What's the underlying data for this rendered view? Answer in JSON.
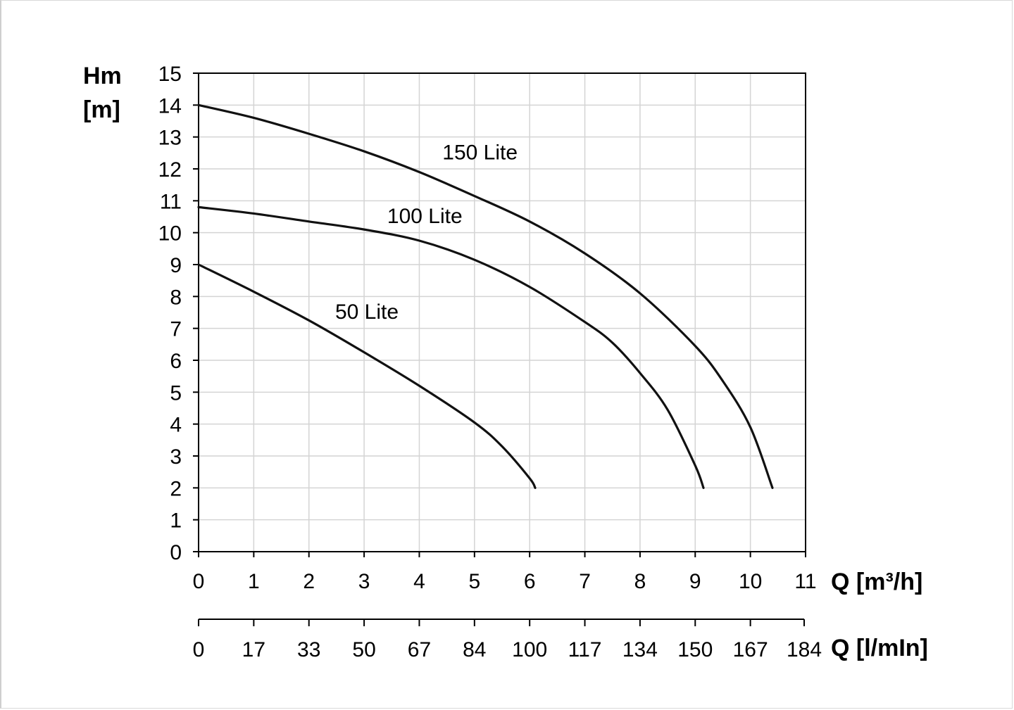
{
  "chart_data": {
    "type": "line",
    "ylabel_line1": "Hm",
    "ylabel_line2": "[m]",
    "xlabel": "Q [m³/h]",
    "x2label": "Q [l/mIn]",
    "xlim": [
      0,
      11
    ],
    "ylim": [
      0,
      15
    ],
    "grid": true,
    "x_ticks": [
      "0",
      "1",
      "2",
      "3",
      "4",
      "5",
      "6",
      "7",
      "8",
      "9",
      "10",
      "11"
    ],
    "y_ticks": [
      "0",
      "1",
      "2",
      "3",
      "4",
      "5",
      "6",
      "7",
      "8",
      "9",
      "10",
      "11",
      "12",
      "13",
      "14",
      "15"
    ],
    "x2_ticks": [
      "0",
      "17",
      "33",
      "50",
      "67",
      "84",
      "100",
      "117",
      "134",
      "150",
      "167",
      "184"
    ],
    "series": [
      {
        "name": "150 Lite",
        "label_at": [
          5.1,
          12.3
        ],
        "points": [
          [
            0,
            14.0
          ],
          [
            1,
            13.6
          ],
          [
            2,
            13.1
          ],
          [
            3,
            12.55
          ],
          [
            4,
            11.9
          ],
          [
            5,
            11.15
          ],
          [
            6,
            10.35
          ],
          [
            7,
            9.35
          ],
          [
            8,
            8.1
          ],
          [
            9,
            6.45
          ],
          [
            9.5,
            5.35
          ],
          [
            10,
            3.9
          ],
          [
            10.4,
            2.0
          ]
        ]
      },
      {
        "name": "100 Lite",
        "label_at": [
          4.1,
          10.3
        ],
        "points": [
          [
            0,
            10.8
          ],
          [
            1,
            10.6
          ],
          [
            2,
            10.35
          ],
          [
            3,
            10.1
          ],
          [
            4,
            9.75
          ],
          [
            5,
            9.15
          ],
          [
            6,
            8.3
          ],
          [
            7,
            7.2
          ],
          [
            7.5,
            6.55
          ],
          [
            8,
            5.6
          ],
          [
            8.5,
            4.45
          ],
          [
            9,
            2.7
          ],
          [
            9.15,
            2.0
          ]
        ]
      },
      {
        "name": "50 Lite",
        "label_at": [
          3.05,
          7.3
        ],
        "points": [
          [
            0,
            9.0
          ],
          [
            1,
            8.15
          ],
          [
            2,
            7.25
          ],
          [
            3,
            6.25
          ],
          [
            4,
            5.2
          ],
          [
            5,
            4.05
          ],
          [
            5.5,
            3.3
          ],
          [
            6,
            2.3
          ],
          [
            6.1,
            2.0
          ]
        ]
      }
    ]
  }
}
